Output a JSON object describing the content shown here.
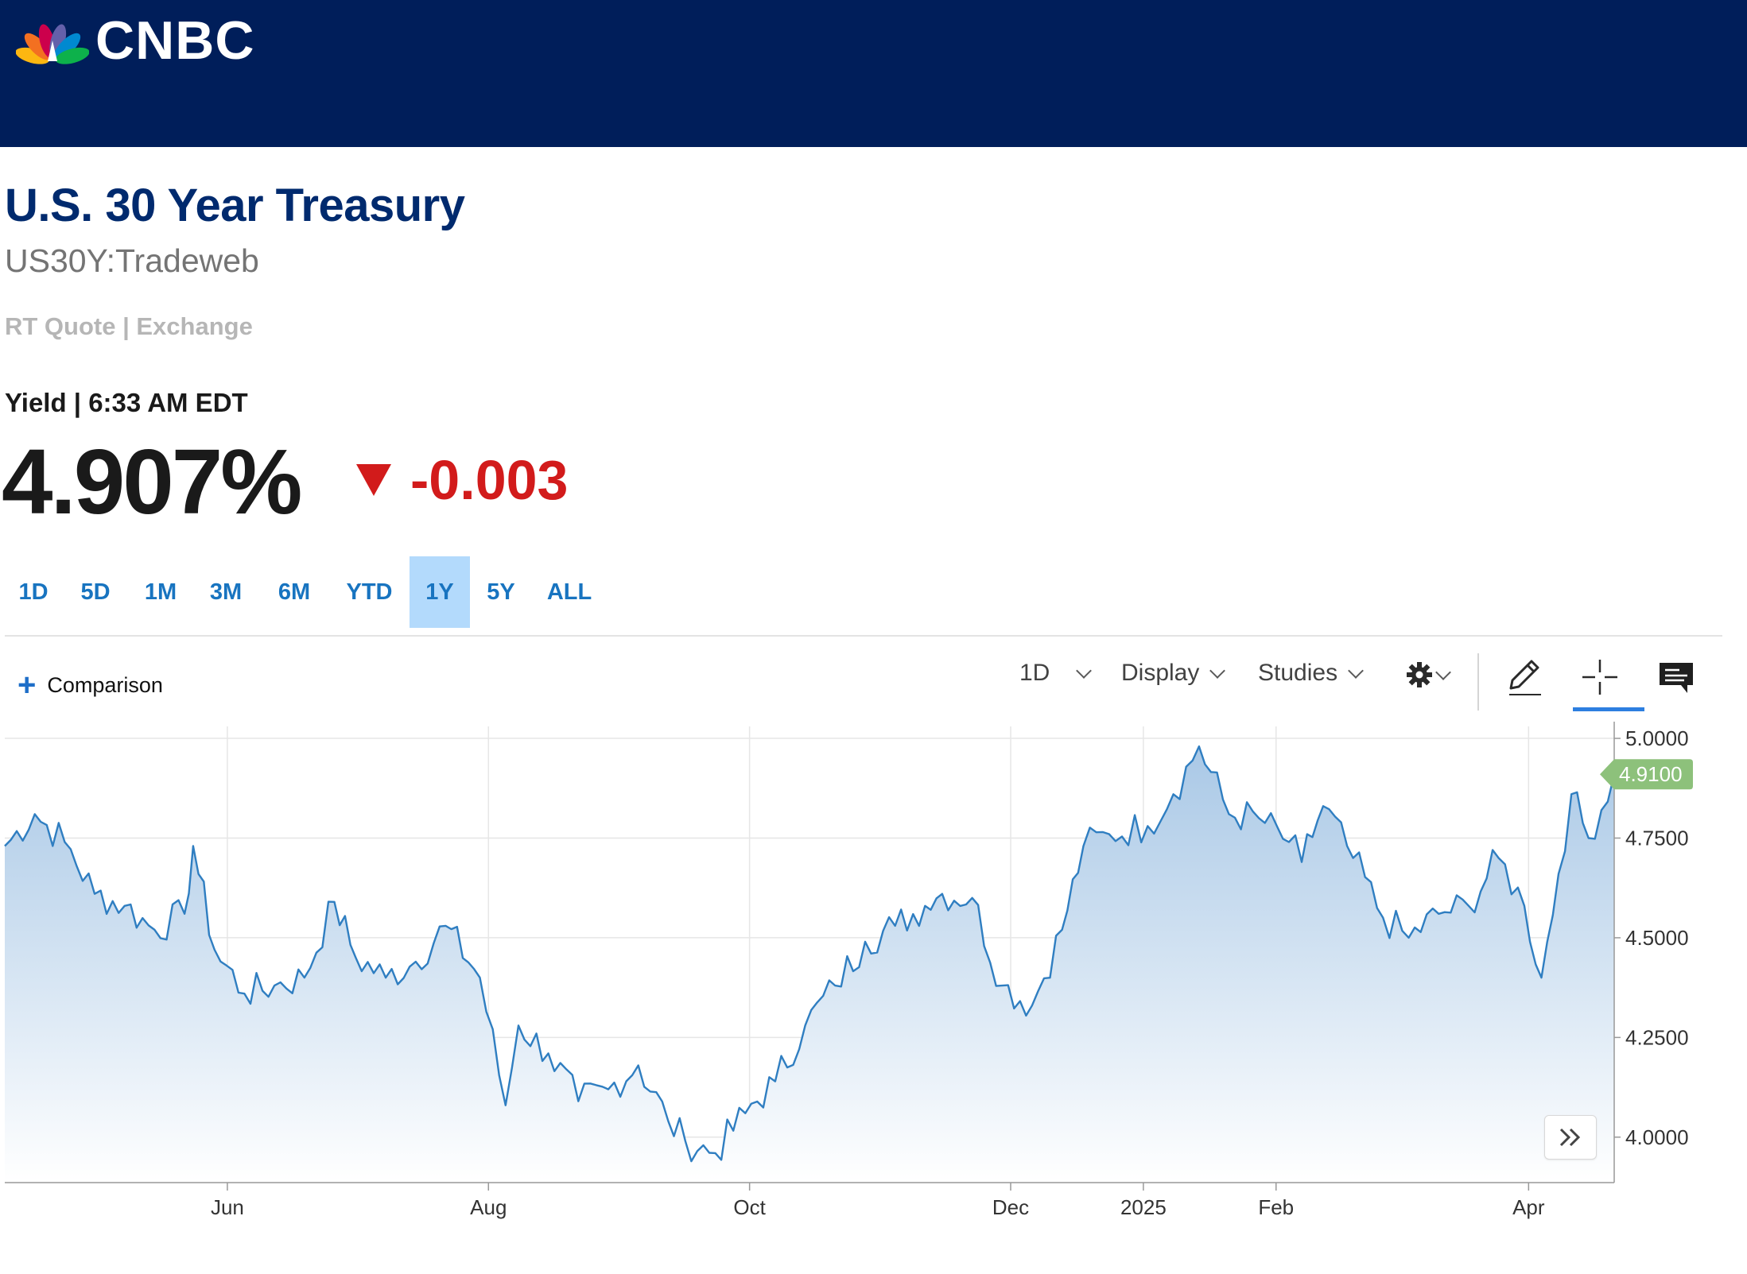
{
  "header": {
    "logo_text": "CNBC",
    "logo_colors": [
      "#fcb711",
      "#f37021",
      "#cc004c",
      "#6460aa",
      "#0089d0",
      "#0db14b"
    ],
    "background": "#001e5a"
  },
  "quote": {
    "title": "U.S. 30 Year Treasury",
    "symbol": "US30Y:Tradeweb",
    "source": "RT Quote | Exchange",
    "yield_line": "Yield | 6:33 AM EDT",
    "last": "4.907%",
    "change": "-0.003",
    "change_direction": "down",
    "change_color": "#d21b1b"
  },
  "ranges": {
    "items": [
      "1D",
      "5D",
      "1M",
      "3M",
      "6M",
      "YTD",
      "1Y",
      "5Y",
      "ALL"
    ],
    "active": "1Y"
  },
  "toolbar": {
    "comparison_label": "Comparison",
    "interval_label": "1D",
    "display_label": "Display",
    "studies_label": "Studies",
    "settings_icon": "gear-icon",
    "draw_icon": "pencil-icon",
    "crosshair_icon": "crosshair-icon",
    "comment_icon": "comment-icon",
    "active_tool": "crosshair"
  },
  "chart_data": {
    "type": "area",
    "x_tick_labels": [
      "Jun",
      "Aug",
      "Oct",
      "Dec",
      "2025",
      "Feb",
      "Apr"
    ],
    "y_tick_labels": [
      "5.0000",
      "4.7500",
      "4.5000",
      "4.2500",
      "4.0000"
    ],
    "y_ticks": [
      5.0,
      4.75,
      4.5,
      4.25,
      4.0
    ],
    "ylim": [
      3.886,
      5.03
    ],
    "last_value_label": "4.9100",
    "last_value": 4.91,
    "line_color": "#2f7ec1",
    "fill_color_top": "#a9c8e6",
    "fill_color_bottom": "#ffffff",
    "last_label_color": "#8dc17b",
    "grid": true,
    "series": [
      {
        "x": [
          "2024-04-10",
          "2024-04-17",
          "2024-04-24",
          "2024-05-01",
          "2024-05-08",
          "2024-05-15",
          "2024-05-22",
          "2024-05-24",
          "2024-05-29",
          "2024-06-05",
          "2024-06-12",
          "2024-06-19",
          "2024-06-26",
          "2024-07-01",
          "2024-07-08",
          "2024-07-15",
          "2024-07-22",
          "2024-07-30",
          "2024-08-05",
          "2024-08-08",
          "2024-08-15",
          "2024-08-22",
          "2024-08-29",
          "2024-09-05",
          "2024-09-12",
          "2024-09-16",
          "2024-09-23",
          "2024-09-30",
          "2024-10-07",
          "2024-10-14",
          "2024-10-21",
          "2024-10-28",
          "2024-11-04",
          "2024-11-11",
          "2024-11-15",
          "2024-11-22",
          "2024-11-29",
          "2024-12-06",
          "2024-12-13",
          "2024-12-18",
          "2024-12-24",
          "2025-01-02",
          "2025-01-08",
          "2025-01-14",
          "2025-01-21",
          "2025-01-28",
          "2025-02-04",
          "2025-02-07",
          "2025-02-12",
          "2025-02-19",
          "2025-02-26",
          "2025-03-04",
          "2025-03-11",
          "2025-03-18",
          "2025-03-25",
          "2025-03-31",
          "2025-04-04",
          "2025-04-08",
          "2025-04-11",
          "2025-04-15",
          "2025-04-21"
        ],
        "values": [
          4.73,
          4.81,
          4.74,
          4.61,
          4.58,
          4.52,
          4.56,
          4.73,
          4.47,
          4.36,
          4.38,
          4.4,
          4.59,
          4.45,
          4.4,
          4.44,
          4.53,
          4.4,
          4.08,
          4.28,
          4.21,
          4.09,
          4.12,
          4.18,
          4.04,
          3.99,
          3.96,
          4.06,
          4.14,
          4.28,
          4.38,
          4.49,
          4.53,
          4.58,
          4.61,
          4.6,
          4.38,
          4.33,
          4.52,
          4.73,
          4.76,
          4.78,
          4.86,
          4.98,
          4.81,
          4.8,
          4.74,
          4.69,
          4.83,
          4.7,
          4.55,
          4.5,
          4.56,
          4.58,
          4.7,
          4.58,
          4.4,
          4.66,
          4.86,
          4.75,
          4.91
        ]
      }
    ]
  }
}
